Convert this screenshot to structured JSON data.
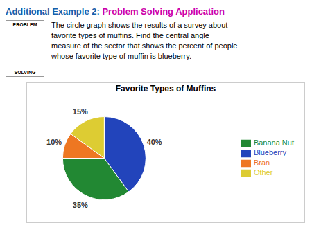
{
  "chart_data": {
    "type": "pie",
    "title": "Favorite Types of Muffins",
    "categories": [
      "Blueberry",
      "Banana Nut",
      "Bran",
      "Other"
    ],
    "values": [
      40,
      35,
      10,
      15
    ],
    "value_labels": [
      "40%",
      "35%",
      "10%",
      "15%"
    ],
    "colors": [
      "#2244BB",
      "#228833",
      "#EE7722",
      "#DDCC33"
    ],
    "data_labels": true,
    "legend": "right",
    "annotations": [
      "Additional Example 2:",
      "Problem Solving Application",
      "The circle graph shows the results of a survey about",
      "favorite types of muffins. Find the central angle",
      "measure of the sector that shows the percent of people",
      "whose favorite type of muffin is blueberry.",
      "PROBLEM",
      "SOLVING"
    ]
  }
}
